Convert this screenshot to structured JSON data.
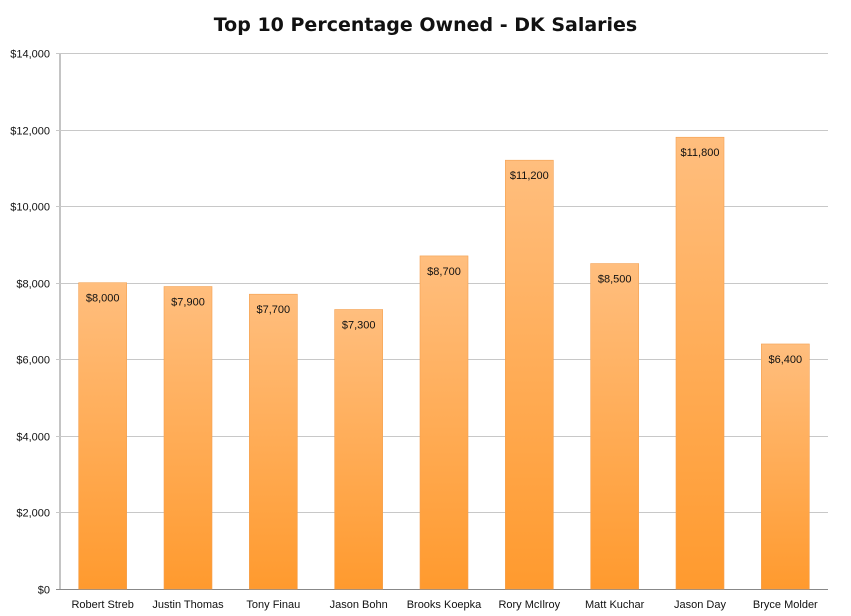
{
  "chart_data": {
    "type": "bar",
    "title": "Top 10 Percentage Owned - DK Salaries",
    "xlabel": "",
    "ylabel": "",
    "categories": [
      "Robert Streb",
      "Justin Thomas",
      "Tony Finau",
      "Jason Bohn",
      "Brooks Koepka",
      "Rory McIlroy",
      "Matt Kuchar",
      "Jason Day",
      "Bryce Molder"
    ],
    "values": [
      8000,
      7900,
      7700,
      7300,
      8700,
      11200,
      8500,
      11800,
      6400
    ],
    "data_labels": [
      "$8,000",
      "$7,900",
      "$7,700",
      "$7,300",
      "$8,700",
      "$11,200",
      "$8,500",
      "$11,800",
      "$6,400"
    ],
    "ylim": [
      0,
      14000
    ],
    "yticks": [
      0,
      2000,
      4000,
      6000,
      8000,
      10000,
      12000,
      14000
    ],
    "ytick_labels": [
      "$0",
      "$2,000",
      "$4,000",
      "$6,000",
      "$8,000",
      "$10,000",
      "$12,000",
      "$14,000"
    ],
    "grid": true,
    "legend": "none",
    "colors": {
      "bar_top": "#FFBE7E",
      "bar_bottom": "#FF9A2E",
      "grid": "#C8C8C8",
      "axis": "#888888"
    }
  }
}
